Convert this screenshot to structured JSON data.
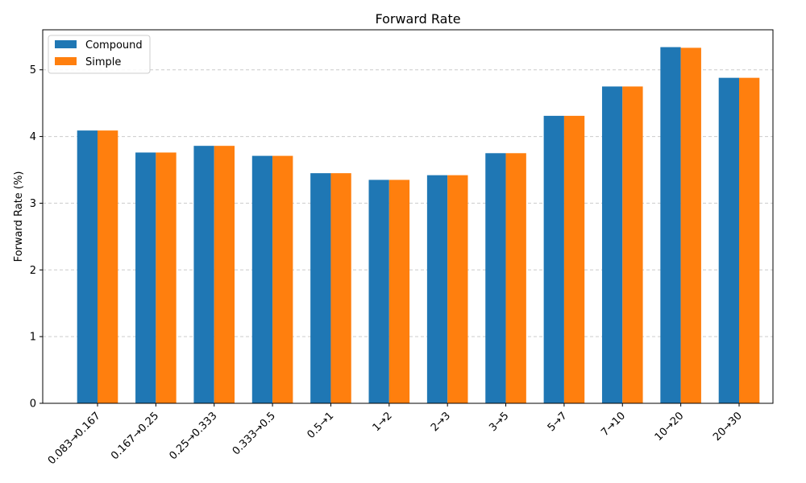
{
  "chart_data": {
    "type": "bar",
    "title": "Forward Rate",
    "xlabel": "",
    "ylabel": "Forward Rate (%)",
    "ylim": [
      0,
      5.6
    ],
    "yticks": [
      0,
      1,
      2,
      3,
      4,
      5
    ],
    "grid": "y-dashed",
    "legend_position": "top-left",
    "categories": [
      "0.083→0.167",
      "0.167→0.25",
      "0.25→0.333",
      "0.333→0.5",
      "0.5→1",
      "1→2",
      "2→3",
      "3→5",
      "5→7",
      "7→10",
      "10→20",
      "20→30"
    ],
    "series": [
      {
        "name": "Compound",
        "color": "#1f77b4",
        "values": [
          4.09,
          3.76,
          3.86,
          3.71,
          3.45,
          3.35,
          3.42,
          3.75,
          4.31,
          4.75,
          5.34,
          4.88
        ]
      },
      {
        "name": "Simple",
        "color": "#ff7f0e",
        "values": [
          4.09,
          3.76,
          3.86,
          3.71,
          3.45,
          3.35,
          3.42,
          3.75,
          4.31,
          4.75,
          5.33,
          4.88
        ]
      }
    ]
  }
}
